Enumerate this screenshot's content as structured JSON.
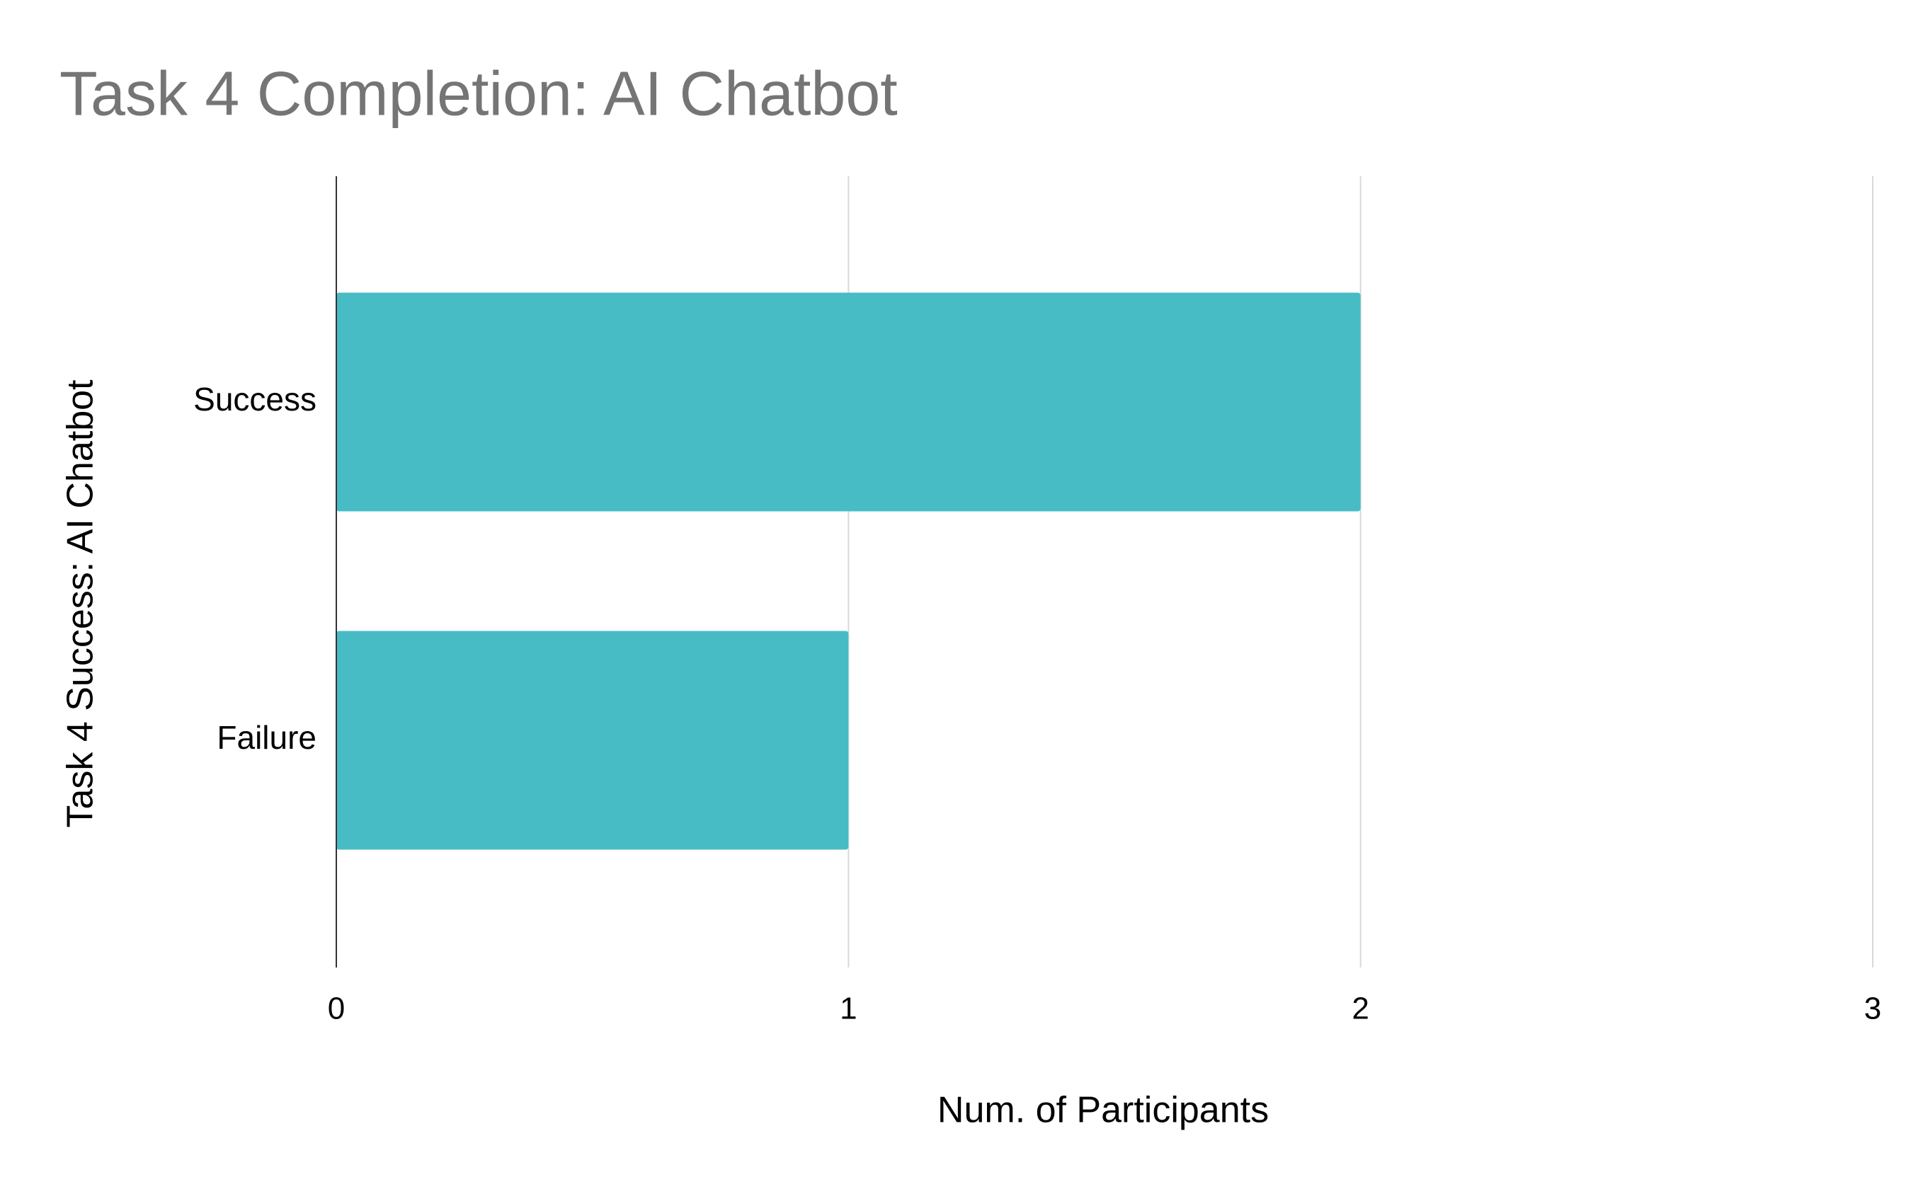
{
  "chart_data": {
    "type": "bar",
    "orientation": "horizontal",
    "title": "Task 4 Completion: AI Chatbot",
    "x_label": "Num. of Participants",
    "y_label": "Task 4 Success: AI Chatbot",
    "categories": [
      "Success",
      "Failure"
    ],
    "values": [
      2,
      1
    ],
    "color": "#48bcc5",
    "xlim": [
      0,
      3
    ],
    "xticks": [
      0,
      1,
      2,
      3
    ],
    "grid": true
  }
}
